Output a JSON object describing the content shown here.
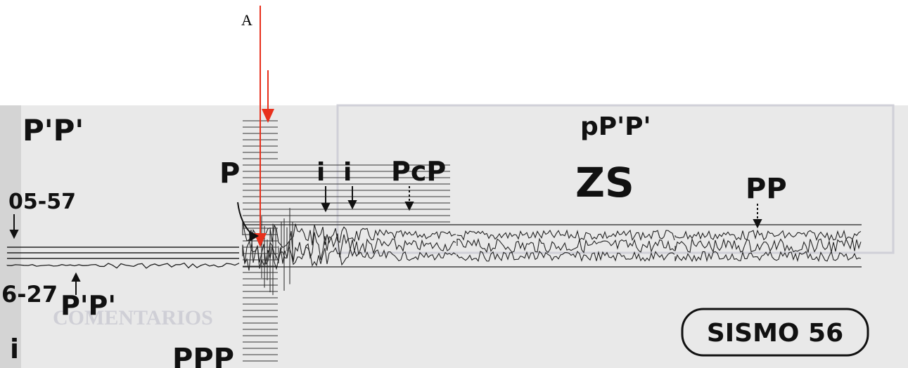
{
  "marker": "A",
  "labels": {
    "top_left": "P'P'",
    "time_1": "05-57",
    "time_2": "6-27",
    "lower_phase": "P'P'",
    "lower_i": "i",
    "ppp": "PPP",
    "p": "P",
    "i_1": "i",
    "i_2": "i",
    "pcp": "PcP",
    "pppp": "pP'P'",
    "zs": "ZS",
    "pp": "PP",
    "comentarios": "COMENTARIOS"
  },
  "badge": "SISMO 56"
}
